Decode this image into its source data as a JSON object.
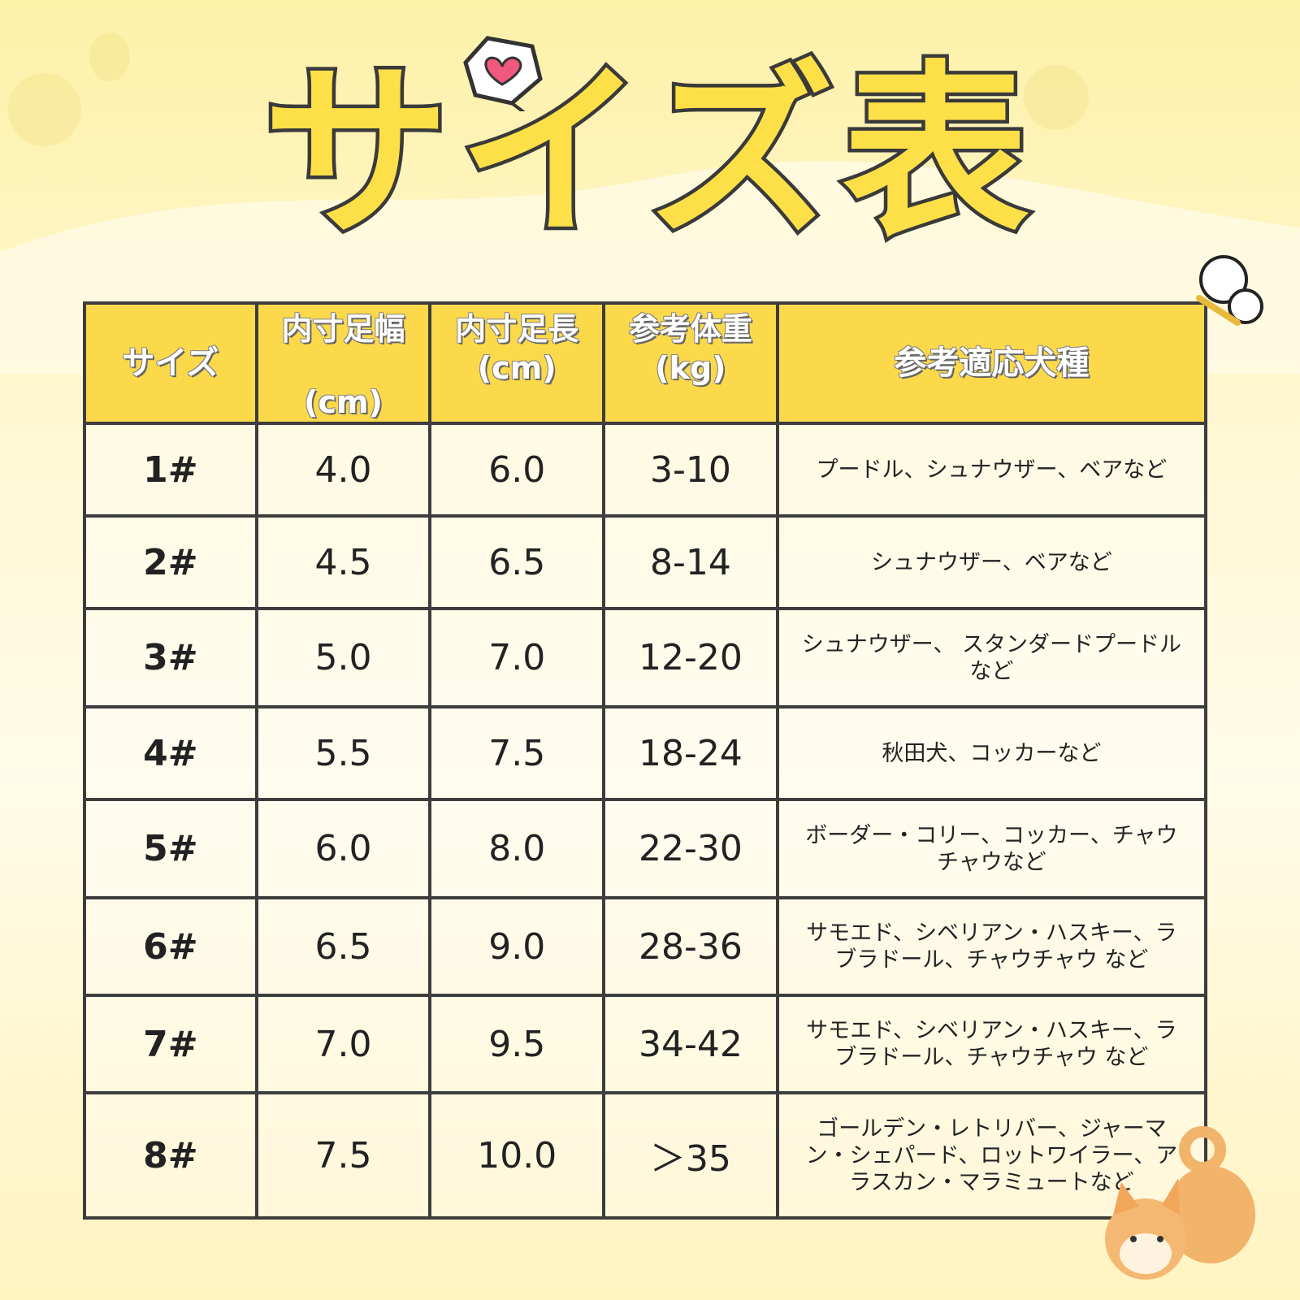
{
  "title": "サイズ表",
  "table": {
    "headers": [
      {
        "line1": "サイズ",
        "line2": ""
      },
      {
        "line1": "内寸足幅",
        "line2": "(cm)"
      },
      {
        "line1": "内寸足長",
        "line2": "(cm)"
      },
      {
        "line1": "参考体重",
        "line2": "(kg)"
      },
      {
        "line1": "参考適応犬種",
        "line2": ""
      }
    ],
    "rows": [
      {
        "size": "1#",
        "width": "4.0",
        "length": "6.0",
        "weight": "3-10",
        "breeds": "プードル、シュナウザー、ベアなど"
      },
      {
        "size": "2#",
        "width": "4.5",
        "length": "6.5",
        "weight": "8-14",
        "breeds": "シュナウザー、ベアなど"
      },
      {
        "size": "3#",
        "width": "5.0",
        "length": "7.0",
        "weight": "12-20",
        "breeds": "シュナウザー、 スタンダードプードルなど"
      },
      {
        "size": "4#",
        "width": "5.5",
        "length": "7.5",
        "weight": "18-24",
        "breeds": "秋田犬、コッカーなど"
      },
      {
        "size": "5#",
        "width": "6.0",
        "length": "8.0",
        "weight": "22-30",
        "breeds": "ボーダー・コリー、コッカー、チャウチャウなど"
      },
      {
        "size": "6#",
        "width": "6.5",
        "length": "9.0",
        "weight": "28-36",
        "breeds": "サモエド、シベリアン・ハスキー、ラブラドール、チャウチャウ など"
      },
      {
        "size": "7#",
        "width": "7.0",
        "length": "9.5",
        "weight": "34-42",
        "breeds": "サモエド、シベリアン・ハスキー、ラブラドール、チャウチャウ など"
      },
      {
        "size": "8#",
        "width": "7.5",
        "length": "10.0",
        "weight": "＞35",
        "breeds": "ゴールデン・レトリバー、ジャーマン・シェパード、ロットワイラー、アラスカン・マラミュートなど"
      }
    ]
  },
  "colors": {
    "header": "#fcd94a",
    "title_fill": "#fde047",
    "border": "#3d3d3d"
  }
}
